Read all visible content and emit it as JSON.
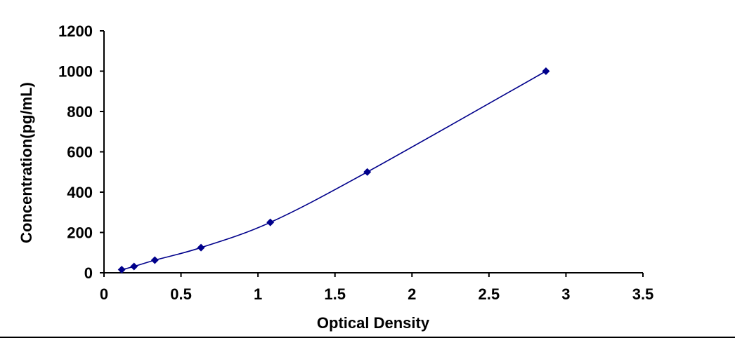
{
  "chart_data": {
    "type": "line",
    "title": "",
    "xlabel": "Optical Density",
    "ylabel": "Concentration(pg/mL)",
    "xlim": [
      0,
      3.5
    ],
    "ylim": [
      0,
      1200
    ],
    "x_ticks": [
      "0",
      "0.5",
      "1",
      "1.5",
      "2",
      "2.5",
      "3",
      "3.5"
    ],
    "y_ticks": [
      "0",
      "200",
      "400",
      "600",
      "800",
      "1000",
      "1200"
    ],
    "grid": false,
    "legend": "none",
    "series": [
      {
        "x": [
          0.115,
          0.195,
          0.33,
          0.63,
          1.08,
          1.71,
          2.87
        ],
        "y": [
          15.6,
          31.2,
          62.5,
          125,
          250,
          500,
          1000
        ],
        "marker": "diamond",
        "line": "smooth",
        "color": "#00008B"
      }
    ]
  }
}
